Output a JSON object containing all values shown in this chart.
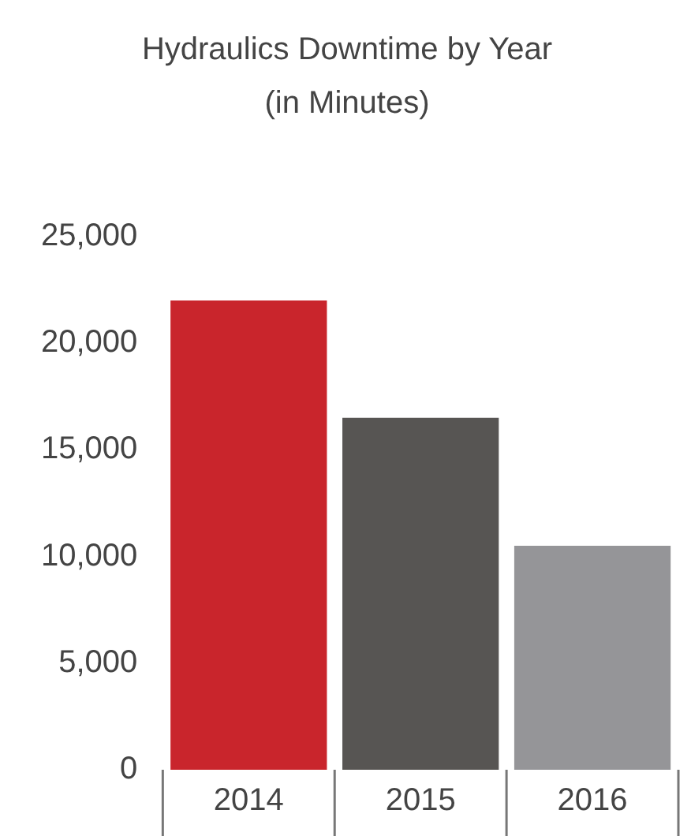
{
  "chart_data": {
    "type": "bar",
    "title": "Hydraulics Downtime by Year",
    "subtitle": "(in Minutes)",
    "categories": [
      "2014",
      "2015",
      "2016"
    ],
    "values": [
      22000,
      16500,
      10500
    ],
    "colors": [
      "#c9252c",
      "#575553",
      "#959598"
    ],
    "ylim": [
      0,
      25000
    ],
    "yticks": [
      0,
      {
        "value": 5000,
        "label": "5,000"
      },
      {
        "value": 10000,
        "label": "10,000"
      },
      {
        "value": 15000,
        "label": "15,000"
      },
      {
        "value": 20000,
        "label": "20,000"
      },
      {
        "value": 25000,
        "label": "25,000"
      }
    ],
    "grid": false,
    "legend": false
  }
}
